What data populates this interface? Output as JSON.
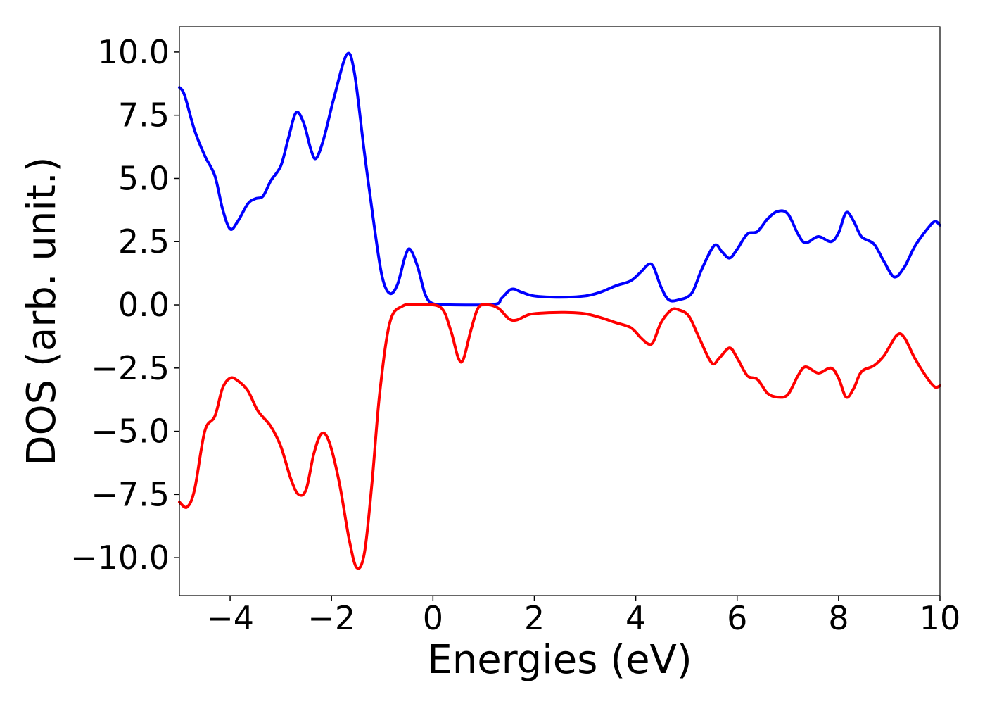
{
  "chart_data": {
    "type": "line",
    "title": "",
    "xlabel": "Energies (eV)",
    "ylabel": "DOS (arb. unit.)",
    "xlim": [
      -5,
      10
    ],
    "ylim": [
      -11.5,
      11
    ],
    "grid": false,
    "legend": "none",
    "x_ticks": [
      {
        "value": -4,
        "label": "−4"
      },
      {
        "value": -2,
        "label": "−2"
      },
      {
        "value": 0,
        "label": "0"
      },
      {
        "value": 2,
        "label": "2"
      },
      {
        "value": 4,
        "label": "4"
      },
      {
        "value": 6,
        "label": "6"
      },
      {
        "value": 8,
        "label": "8"
      },
      {
        "value": 10,
        "label": "10"
      }
    ],
    "y_ticks": [
      {
        "value": 10,
        "label": "10.0"
      },
      {
        "value": 7.5,
        "label": "7.5"
      },
      {
        "value": 5,
        "label": "5.0"
      },
      {
        "value": 2.5,
        "label": "2.5"
      },
      {
        "value": 0,
        "label": "0.0"
      },
      {
        "value": -2.5,
        "label": "−2.5"
      },
      {
        "value": -5,
        "label": "−5.0"
      },
      {
        "value": -7.5,
        "label": "−7.5"
      },
      {
        "value": -10,
        "label": "−10.0"
      }
    ],
    "series": [
      {
        "color": "#0000ff",
        "points": [
          [
            -5.0,
            8.6
          ],
          [
            -4.9,
            8.3
          ],
          [
            -4.7,
            6.9
          ],
          [
            -4.5,
            5.9
          ],
          [
            -4.3,
            5.1
          ],
          [
            -4.15,
            3.8
          ],
          [
            -4.0,
            3.0
          ],
          [
            -3.85,
            3.3
          ],
          [
            -3.65,
            4.0
          ],
          [
            -3.5,
            4.2
          ],
          [
            -3.35,
            4.3
          ],
          [
            -3.2,
            4.9
          ],
          [
            -3.0,
            5.5
          ],
          [
            -2.85,
            6.6
          ],
          [
            -2.7,
            7.6
          ],
          [
            -2.55,
            7.2
          ],
          [
            -2.4,
            6.1
          ],
          [
            -2.3,
            5.8
          ],
          [
            -2.15,
            6.6
          ],
          [
            -1.95,
            8.2
          ],
          [
            -1.7,
            9.9
          ],
          [
            -1.55,
            9.2
          ],
          [
            -1.35,
            6.0
          ],
          [
            -1.15,
            3.0
          ],
          [
            -1.0,
            1.1
          ],
          [
            -0.85,
            0.45
          ],
          [
            -0.7,
            0.8
          ],
          [
            -0.55,
            1.9
          ],
          [
            -0.45,
            2.2
          ],
          [
            -0.3,
            1.5
          ],
          [
            -0.15,
            0.4
          ],
          [
            0.0,
            0.05
          ],
          [
            0.3,
            0.0
          ],
          [
            1.2,
            0.02
          ],
          [
            1.35,
            0.25
          ],
          [
            1.55,
            0.62
          ],
          [
            1.75,
            0.5
          ],
          [
            2.0,
            0.35
          ],
          [
            2.5,
            0.3
          ],
          [
            3.0,
            0.35
          ],
          [
            3.3,
            0.5
          ],
          [
            3.6,
            0.75
          ],
          [
            3.9,
            0.95
          ],
          [
            4.1,
            1.3
          ],
          [
            4.25,
            1.6
          ],
          [
            4.35,
            1.5
          ],
          [
            4.5,
            0.7
          ],
          [
            4.65,
            0.2
          ],
          [
            4.85,
            0.2
          ],
          [
            5.1,
            0.45
          ],
          [
            5.3,
            1.4
          ],
          [
            5.55,
            2.35
          ],
          [
            5.7,
            2.1
          ],
          [
            5.85,
            1.85
          ],
          [
            6.0,
            2.2
          ],
          [
            6.2,
            2.8
          ],
          [
            6.4,
            2.9
          ],
          [
            6.6,
            3.4
          ],
          [
            6.8,
            3.7
          ],
          [
            7.0,
            3.6
          ],
          [
            7.2,
            2.8
          ],
          [
            7.35,
            2.45
          ],
          [
            7.6,
            2.7
          ],
          [
            7.85,
            2.5
          ],
          [
            8.0,
            2.85
          ],
          [
            8.15,
            3.65
          ],
          [
            8.3,
            3.3
          ],
          [
            8.45,
            2.7
          ],
          [
            8.7,
            2.4
          ],
          [
            8.9,
            1.7
          ],
          [
            9.1,
            1.1
          ],
          [
            9.3,
            1.5
          ],
          [
            9.5,
            2.3
          ],
          [
            9.75,
            3.0
          ],
          [
            9.9,
            3.3
          ],
          [
            10.0,
            3.15
          ]
        ]
      },
      {
        "color": "#ff0000",
        "points": [
          [
            -5.0,
            -7.8
          ],
          [
            -4.85,
            -8.0
          ],
          [
            -4.7,
            -7.3
          ],
          [
            -4.5,
            -5.0
          ],
          [
            -4.3,
            -4.4
          ],
          [
            -4.15,
            -3.3
          ],
          [
            -4.0,
            -2.9
          ],
          [
            -3.85,
            -3.0
          ],
          [
            -3.65,
            -3.4
          ],
          [
            -3.45,
            -4.2
          ],
          [
            -3.2,
            -4.8
          ],
          [
            -3.0,
            -5.6
          ],
          [
            -2.8,
            -6.9
          ],
          [
            -2.65,
            -7.5
          ],
          [
            -2.5,
            -7.3
          ],
          [
            -2.35,
            -5.9
          ],
          [
            -2.2,
            -5.1
          ],
          [
            -2.05,
            -5.4
          ],
          [
            -1.85,
            -7.0
          ],
          [
            -1.65,
            -9.3
          ],
          [
            -1.5,
            -10.4
          ],
          [
            -1.35,
            -9.8
          ],
          [
            -1.2,
            -7.0
          ],
          [
            -1.05,
            -3.5
          ],
          [
            -0.85,
            -0.7
          ],
          [
            -0.6,
            -0.05
          ],
          [
            -0.3,
            0.0
          ],
          [
            0.15,
            -0.1
          ],
          [
            0.35,
            -1.0
          ],
          [
            0.5,
            -2.1
          ],
          [
            0.6,
            -2.15
          ],
          [
            0.75,
            -1.0
          ],
          [
            0.9,
            -0.1
          ],
          [
            1.1,
            0.0
          ],
          [
            1.3,
            -0.15
          ],
          [
            1.5,
            -0.55
          ],
          [
            1.65,
            -0.6
          ],
          [
            1.9,
            -0.38
          ],
          [
            2.2,
            -0.32
          ],
          [
            2.6,
            -0.3
          ],
          [
            3.0,
            -0.35
          ],
          [
            3.3,
            -0.5
          ],
          [
            3.6,
            -0.7
          ],
          [
            3.9,
            -0.9
          ],
          [
            4.1,
            -1.3
          ],
          [
            4.25,
            -1.55
          ],
          [
            4.35,
            -1.45
          ],
          [
            4.5,
            -0.7
          ],
          [
            4.7,
            -0.2
          ],
          [
            4.85,
            -0.2
          ],
          [
            5.05,
            -0.45
          ],
          [
            5.25,
            -1.3
          ],
          [
            5.5,
            -2.3
          ],
          [
            5.65,
            -2.1
          ],
          [
            5.85,
            -1.7
          ],
          [
            6.0,
            -2.1
          ],
          [
            6.2,
            -2.8
          ],
          [
            6.4,
            -2.95
          ],
          [
            6.6,
            -3.5
          ],
          [
            6.8,
            -3.65
          ],
          [
            7.0,
            -3.55
          ],
          [
            7.2,
            -2.8
          ],
          [
            7.35,
            -2.45
          ],
          [
            7.6,
            -2.7
          ],
          [
            7.85,
            -2.5
          ],
          [
            8.0,
            -2.9
          ],
          [
            8.15,
            -3.65
          ],
          [
            8.3,
            -3.3
          ],
          [
            8.45,
            -2.65
          ],
          [
            8.7,
            -2.4
          ],
          [
            8.9,
            -2.0
          ],
          [
            9.15,
            -1.2
          ],
          [
            9.3,
            -1.3
          ],
          [
            9.5,
            -2.1
          ],
          [
            9.75,
            -2.9
          ],
          [
            9.9,
            -3.25
          ],
          [
            10.0,
            -3.2
          ]
        ]
      }
    ]
  }
}
